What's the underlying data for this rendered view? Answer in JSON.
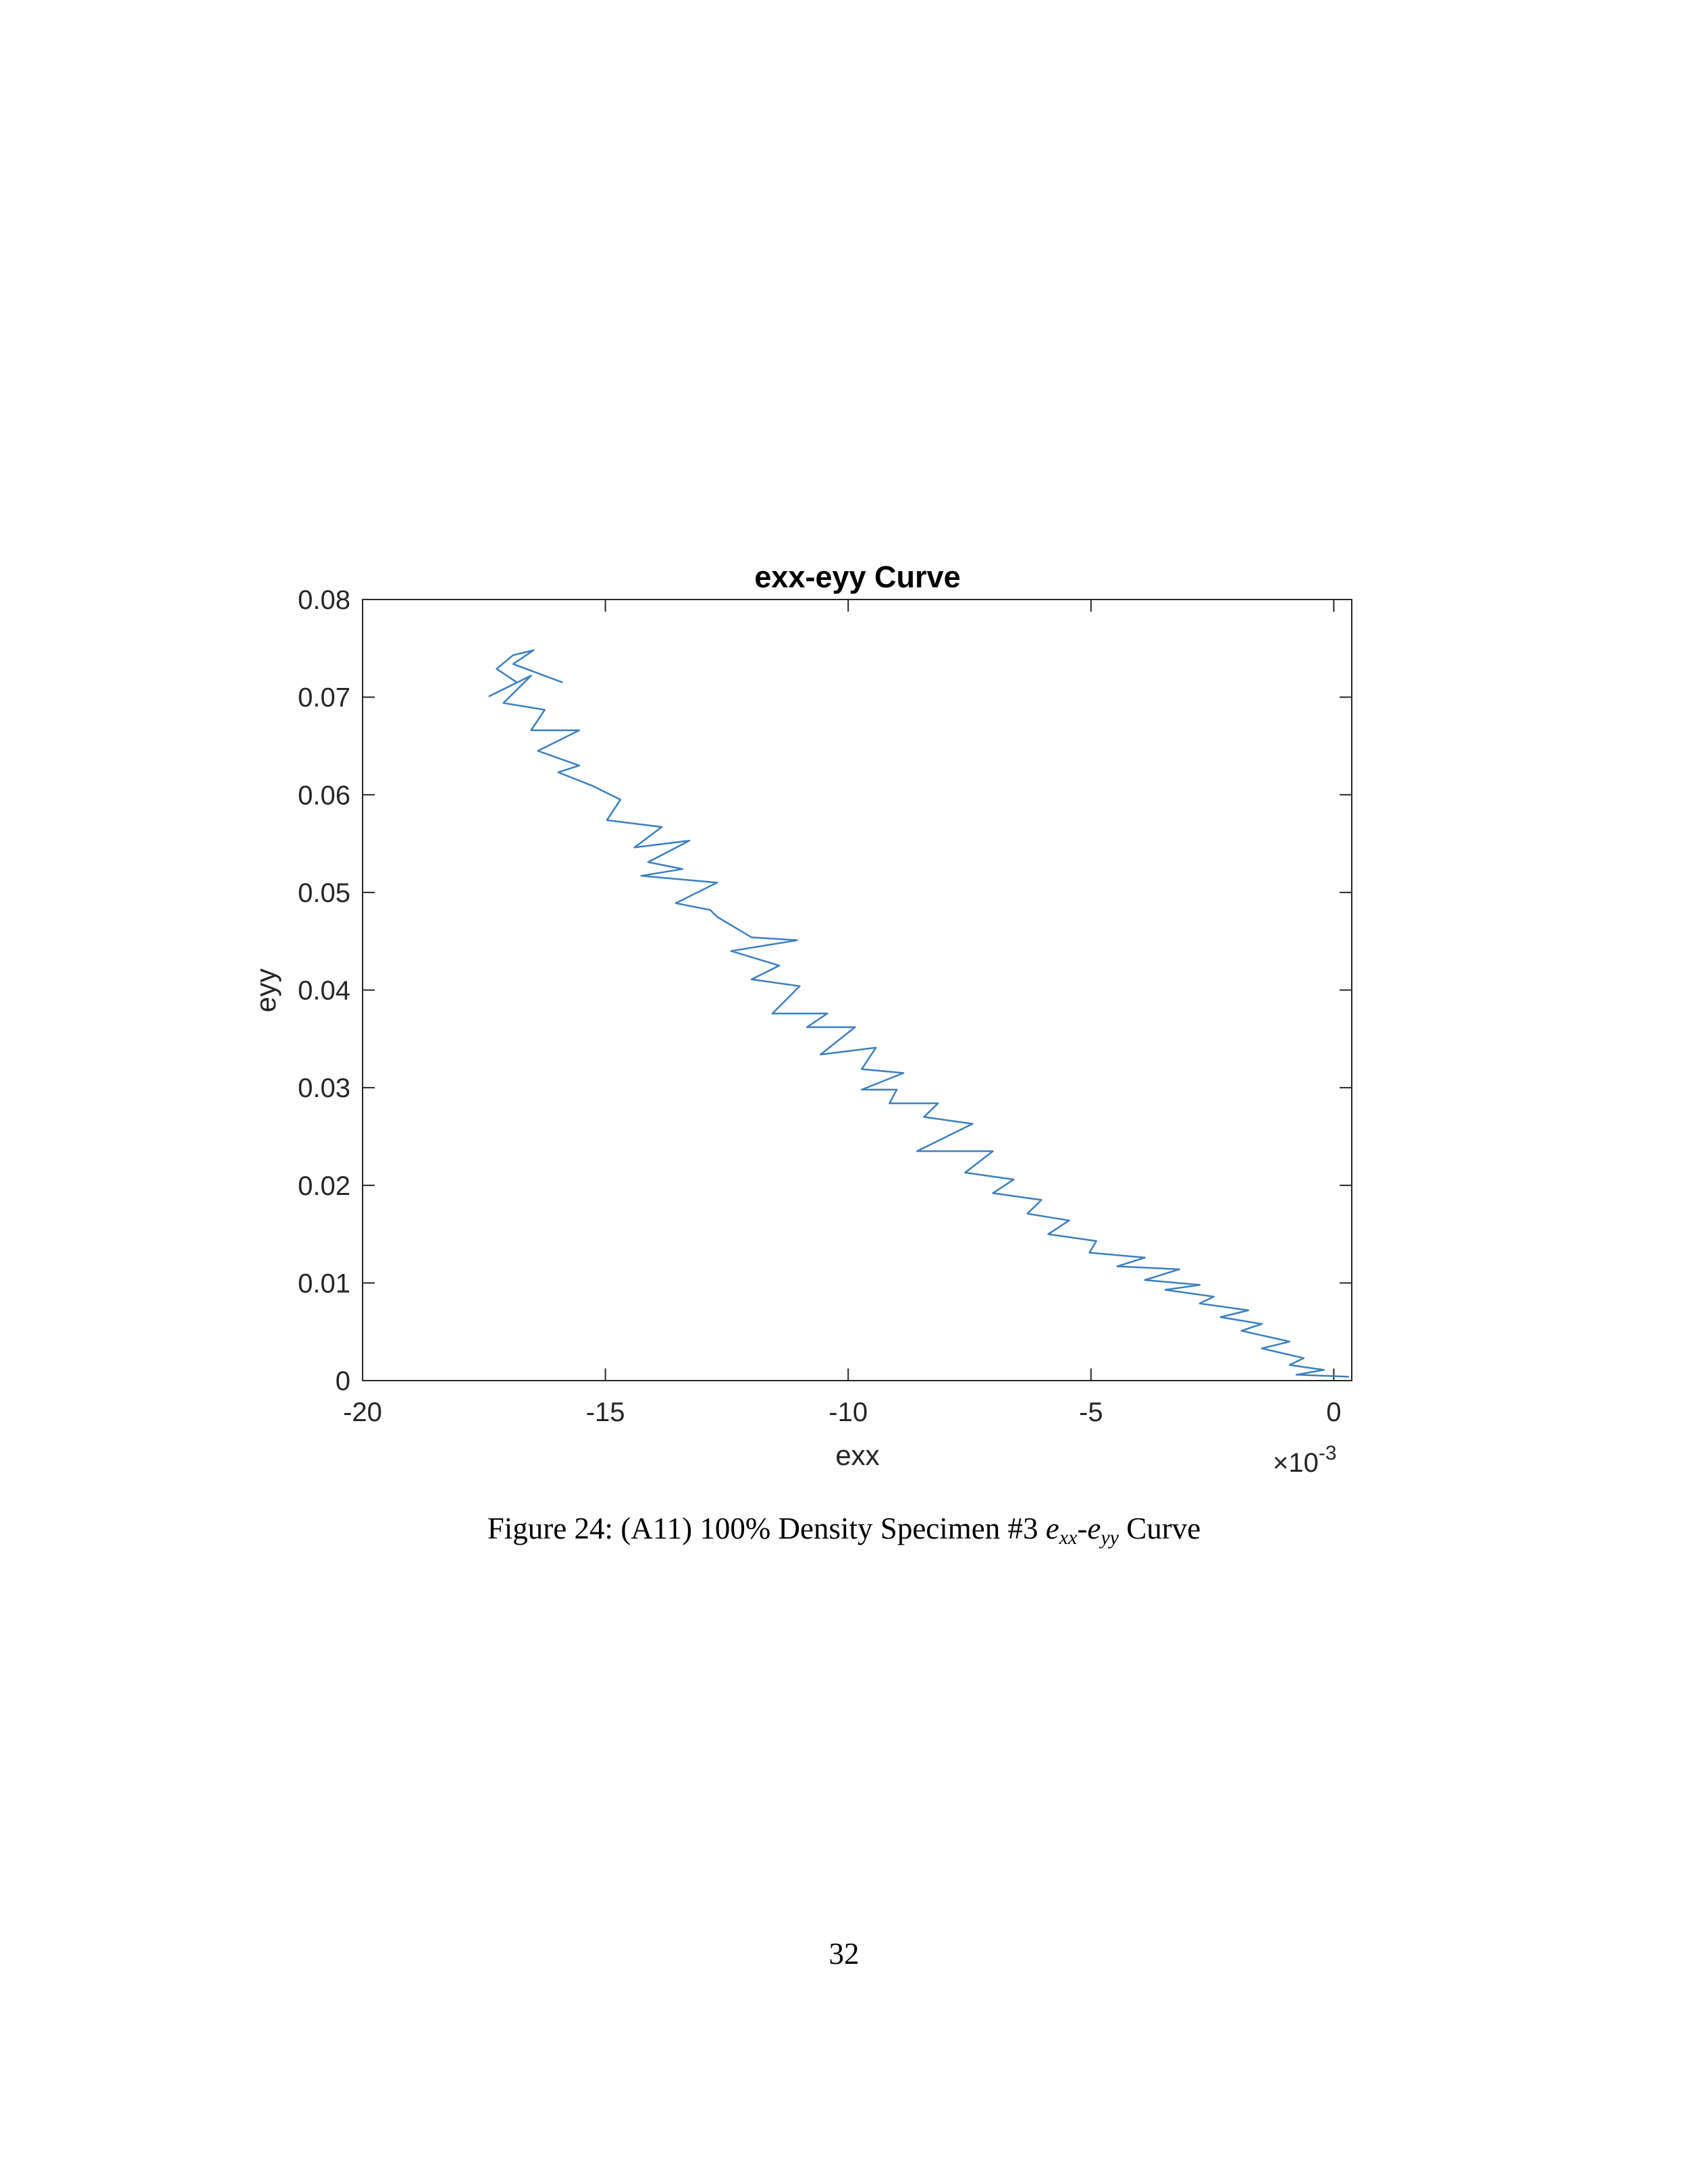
{
  "chart_data": {
    "type": "line",
    "title": "exx-eyy Curve",
    "xlabel": "exx",
    "ylabel": "eyy",
    "x_multiplier": "×10",
    "x_multiplier_exponent": "-3",
    "xlim": [
      -20,
      0.37
    ],
    "ylim": [
      0,
      0.08
    ],
    "xticks": [
      -20,
      -15,
      -10,
      -5,
      0
    ],
    "yticks": [
      0,
      0.01,
      0.02,
      0.03,
      0.04,
      0.05,
      0.06,
      0.07,
      0.08
    ],
    "grid": false,
    "series": [
      {
        "color": "#3b7fc0",
        "x": [
          0.31,
          -0.77,
          -0.2,
          -0.91,
          -0.62,
          -1.48,
          -0.91,
          -1.9,
          -1.48,
          -2.33,
          -1.76,
          -2.76,
          -2.47,
          -3.47,
          -2.76,
          -3.89,
          -3.18,
          -4.46,
          -3.89,
          -5.03,
          -4.89,
          -5.88,
          -5.45,
          -6.31,
          -6.02,
          -7.02,
          -6.59,
          -7.59,
          -7.02,
          -8.58,
          -7.44,
          -8.44,
          -8.15,
          -9.15,
          -9.0,
          -9.72,
          -8.86,
          -9.72,
          -9.43,
          -10.57,
          -9.86,
          -10.85,
          -10.43,
          -11.56,
          -11.0,
          -11.99,
          -11.42,
          -12.41,
          -11.05,
          -11.99,
          -12.7,
          -12.84,
          -13.55,
          -12.7,
          -14.26,
          -13.41,
          -14.12,
          -13.27,
          -14.4,
          -13.84,
          -14.97,
          -14.69,
          -15.26,
          -15.97,
          -15.54,
          -16.39,
          -15.54,
          -16.53,
          -16.25,
          -17.1,
          -16.53,
          -17.39,
          -16.82,
          -17.24,
          -16.9,
          -16.48,
          -16.9,
          -15.88
        ],
        "values": [
          0.0004,
          0.0006,
          0.0011,
          0.0016,
          0.0023,
          0.0033,
          0.004,
          0.0051,
          0.0058,
          0.0065,
          0.0072,
          0.0079,
          0.0086,
          0.0093,
          0.0098,
          0.0103,
          0.0114,
          0.0117,
          0.0126,
          0.0131,
          0.0143,
          0.015,
          0.0164,
          0.0171,
          0.0185,
          0.0192,
          0.0206,
          0.0213,
          0.0235,
          0.0235,
          0.0263,
          0.027,
          0.0284,
          0.0284,
          0.0298,
          0.0298,
          0.0315,
          0.0319,
          0.0341,
          0.0334,
          0.0362,
          0.0362,
          0.0376,
          0.0376,
          0.0404,
          0.0411,
          0.0425,
          0.044,
          0.0451,
          0.0454,
          0.0475,
          0.0482,
          0.0489,
          0.051,
          0.0517,
          0.0524,
          0.0531,
          0.0553,
          0.0546,
          0.0567,
          0.0574,
          0.0595,
          0.0609,
          0.0623,
          0.063,
          0.0645,
          0.0666,
          0.0666,
          0.0687,
          0.0694,
          0.0722,
          0.0701,
          0.0715,
          0.0729,
          0.0743,
          0.0748,
          0.0734,
          0.0715
        ]
      }
    ]
  },
  "caption": {
    "prefix": "Figure 24:",
    "text": "(A11) 100% Density Specimen #3",
    "var1": "e",
    "sub1": "xx",
    "sep": "-",
    "var2": "e",
    "sub2": "yy",
    "suffix": "Curve"
  },
  "page_number": "32"
}
